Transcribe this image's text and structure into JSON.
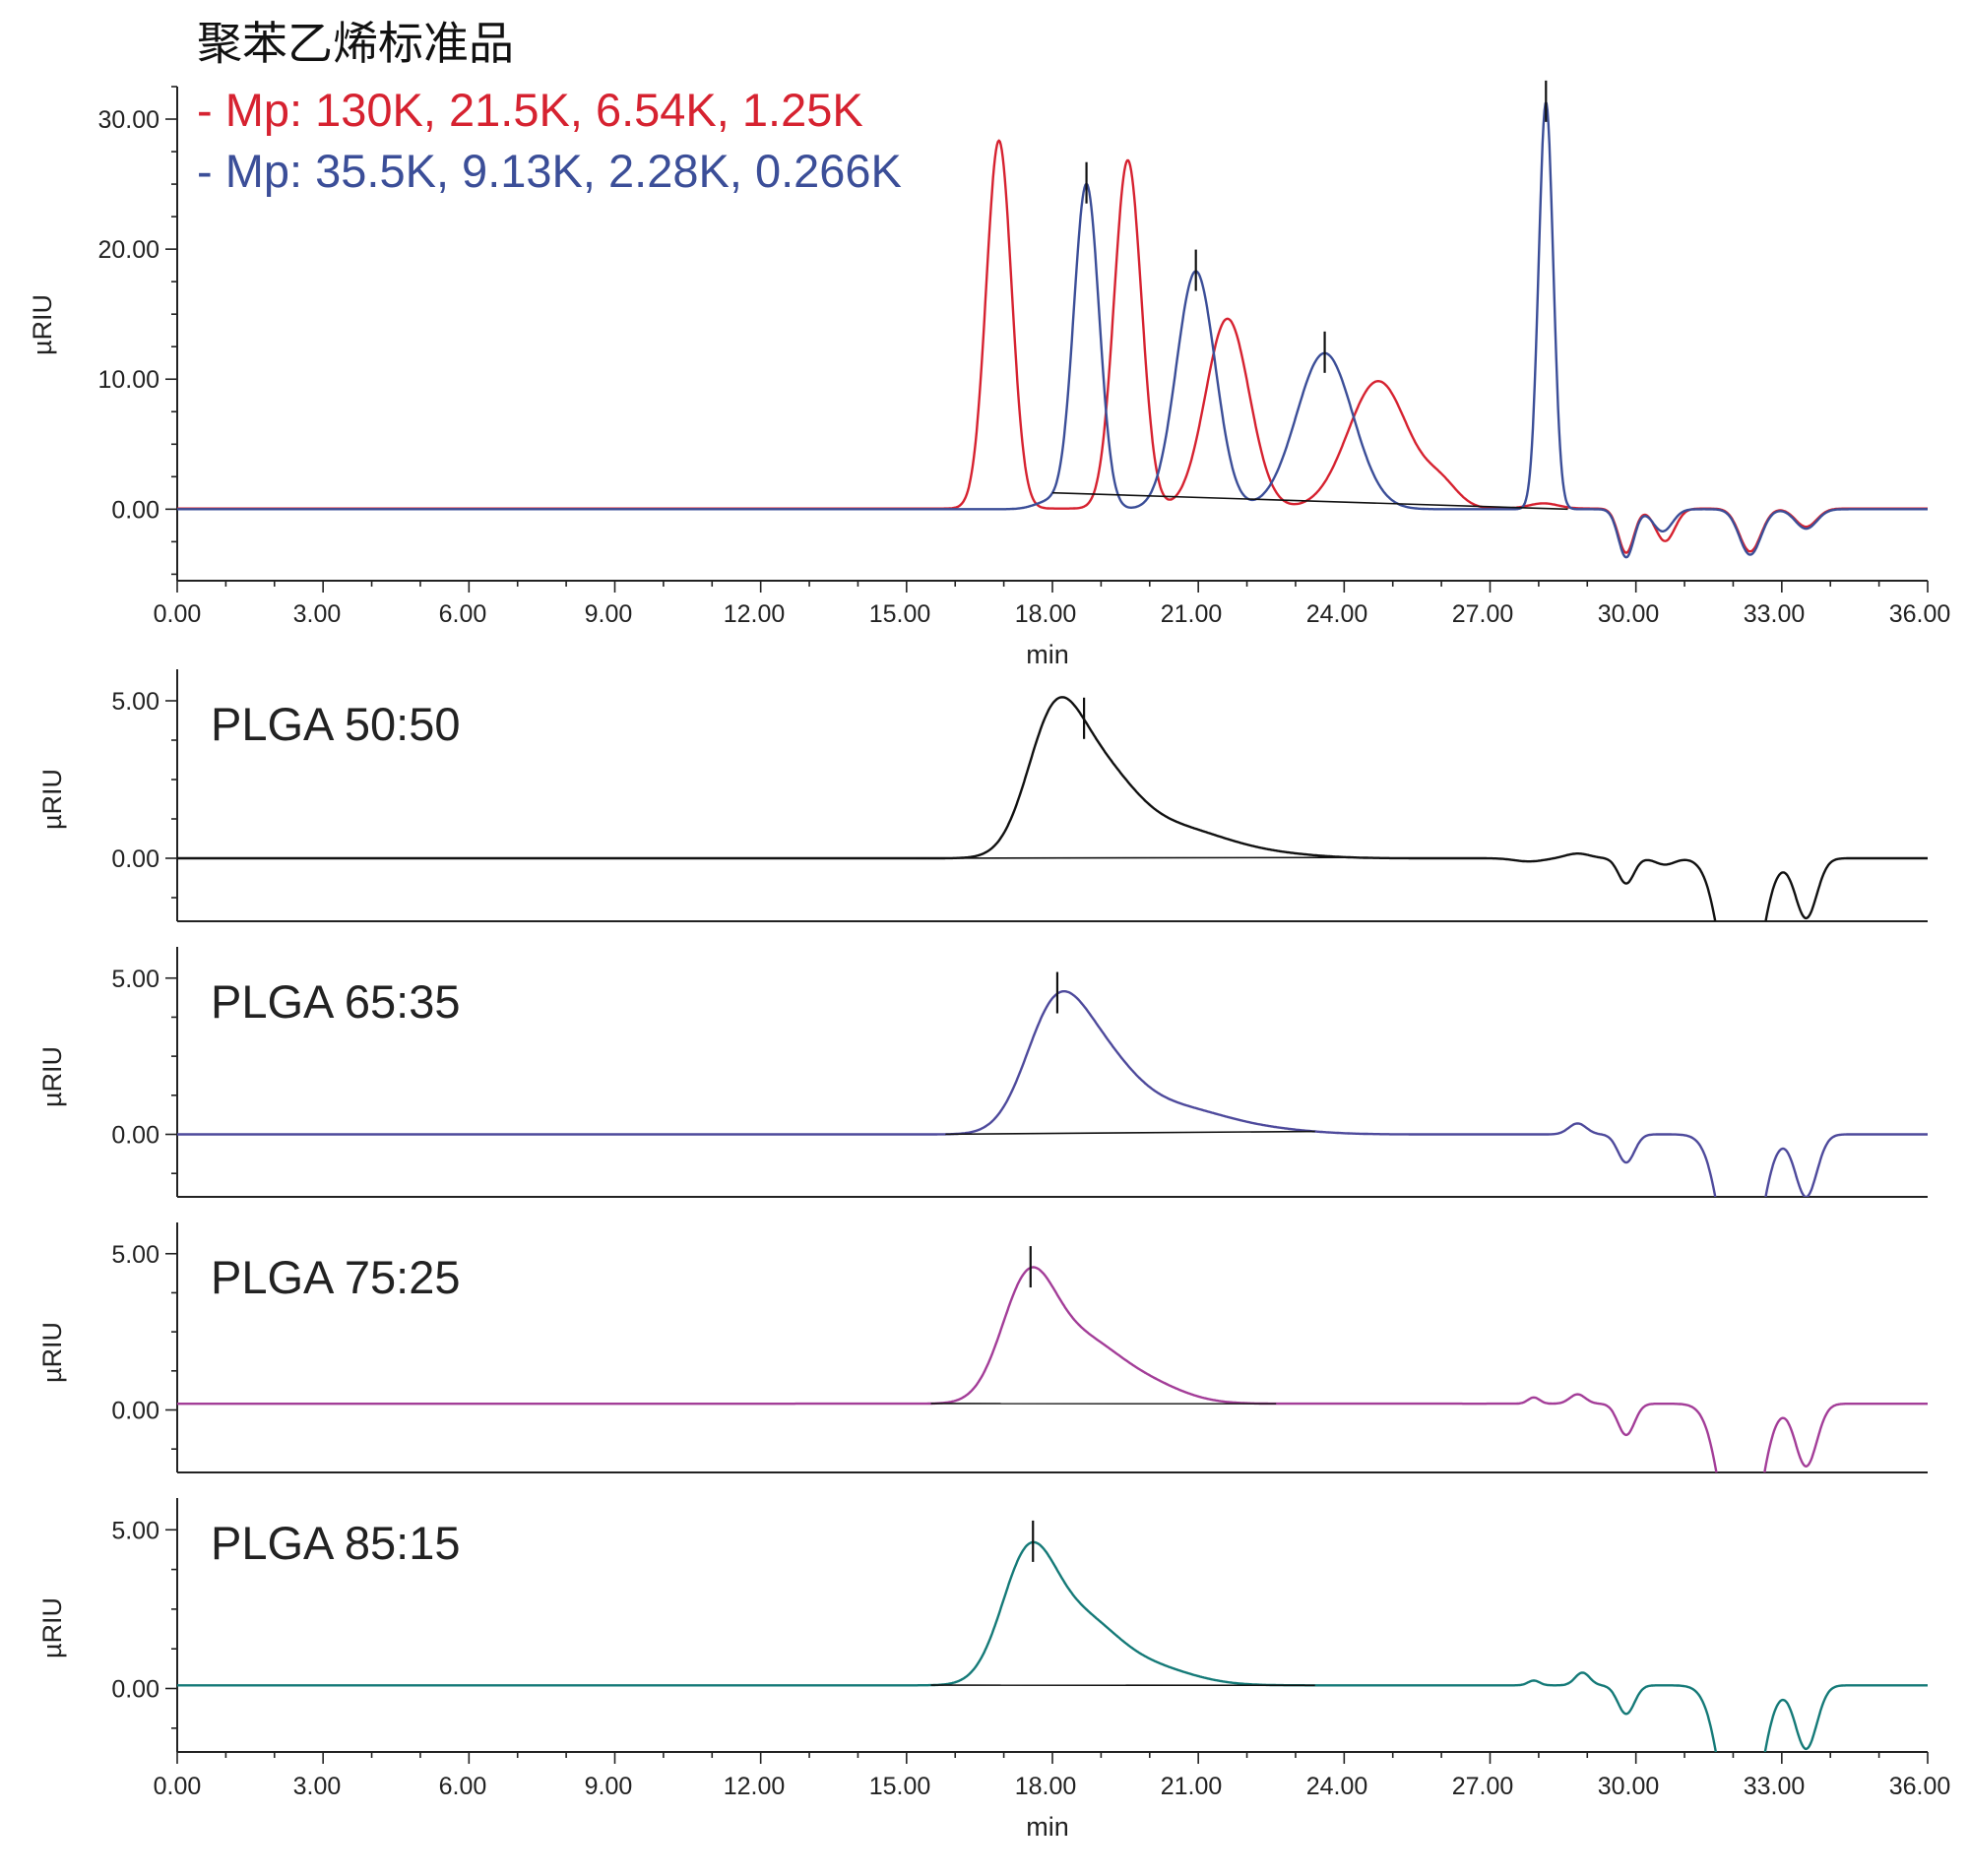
{
  "chart_data": [
    {
      "type": "line",
      "title": "聚苯乙烯标准品",
      "xlabel": "min",
      "ylabel": "µRIU",
      "xlim": [
        0,
        36
      ],
      "ylim": [
        -5.5,
        32.5
      ],
      "x_ticks": [
        "0.00",
        "3.00",
        "6.00",
        "9.00",
        "12.00",
        "15.00",
        "18.00",
        "21.00",
        "24.00",
        "27.00",
        "30.00",
        "33.00",
        "36.00"
      ],
      "y_ticks": [
        {
          "value": 0,
          "label": "0.00"
        },
        {
          "value": 10,
          "label": "10.00"
        },
        {
          "value": 20,
          "label": "20.00"
        },
        {
          "value": 30,
          "label": "30.00"
        }
      ],
      "legend_position": "top-left",
      "series": [
        {
          "name": "- Mp: 130K, 21.5K, 6.54K, 1.25K",
          "color": "#d62230",
          "baseline": 0.05,
          "peaks": [
            {
              "t": 16.9,
              "h": 28.3,
              "w": 0.26
            },
            {
              "t": 19.55,
              "h": 26.8,
              "w": 0.28
            },
            {
              "t": 21.6,
              "h": 14.6,
              "w": 0.45
            },
            {
              "t": 24.7,
              "h": 9.8,
              "w": 0.62
            },
            {
              "t": 26.0,
              "h": 1.6,
              "w": 0.35
            },
            {
              "t": 28.1,
              "h": 0.4,
              "w": 0.3
            },
            {
              "t": 29.8,
              "h": -3.4,
              "w": 0.16
            },
            {
              "t": 30.6,
              "h": -2.5,
              "w": 0.2
            },
            {
              "t": 32.35,
              "h": -3.3,
              "w": 0.22
            },
            {
              "t": 33.5,
              "h": -1.4,
              "w": 0.22
            }
          ]
        },
        {
          "name": "- Mp: 35.5K, 9.13K, 2.28K, 0.266K",
          "color": "#3b4e98",
          "baseline": 0.0,
          "peaks": [
            {
              "t": 17.95,
              "h": 0.6,
              "w": 0.3
            },
            {
              "t": 18.7,
              "h": 25.0,
              "w": 0.26
            },
            {
              "t": 20.95,
              "h": 18.3,
              "w": 0.4
            },
            {
              "t": 23.6,
              "h": 12.0,
              "w": 0.58
            },
            {
              "t": 28.15,
              "h": 31.3,
              "w": 0.15
            },
            {
              "t": 29.8,
              "h": -3.7,
              "w": 0.16
            },
            {
              "t": 30.55,
              "h": -1.7,
              "w": 0.2
            },
            {
              "t": 32.35,
              "h": -3.5,
              "w": 0.22
            },
            {
              "t": 33.5,
              "h": -1.5,
              "w": 0.22
            }
          ]
        }
      ],
      "peak_markers": [
        18.7,
        20.95,
        23.6,
        28.15
      ],
      "integration_baseline": [
        18.0,
        28.6
      ]
    },
    {
      "type": "line",
      "label": "PLGA 50:50",
      "ylabel": "µRIU",
      "xlim": [
        0,
        36
      ],
      "ylim": [
        -2.0,
        6.0
      ],
      "y_ticks": [
        {
          "value": 0,
          "label": "0.00"
        },
        {
          "value": 5,
          "label": "5.00"
        }
      ],
      "color": "#111111",
      "baseline": 0.0,
      "peaks": [
        {
          "t": 18.0,
          "h": 3.6,
          "w": 0.55
        },
        {
          "t": 18.9,
          "h": 2.6,
          "w": 0.75
        },
        {
          "t": 20.5,
          "h": 0.9,
          "w": 1.0
        },
        {
          "t": 22.3,
          "h": 0.15,
          "w": 1.0
        },
        {
          "t": 27.8,
          "h": -0.1,
          "w": 0.3
        },
        {
          "t": 28.8,
          "h": 0.15,
          "w": 0.25
        },
        {
          "t": 29.8,
          "h": -0.8,
          "w": 0.16
        },
        {
          "t": 30.6,
          "h": -0.2,
          "w": 0.2
        },
        {
          "t": 32.15,
          "h": -6.0,
          "w": 0.35
        },
        {
          "t": 33.5,
          "h": -1.9,
          "w": 0.22
        }
      ],
      "peak_marker": 18.65,
      "integration_baseline": [
        15.2,
        24.2
      ]
    },
    {
      "type": "line",
      "label": "PLGA 65:35",
      "ylabel": "µRIU",
      "xlim": [
        0,
        36
      ],
      "ylim": [
        -2.0,
        6.0
      ],
      "y_ticks": [
        {
          "value": 0,
          "label": "0.00"
        },
        {
          "value": 5,
          "label": "5.00"
        }
      ],
      "color": "#4e4a9c",
      "baseline": 0.0,
      "peaks": [
        {
          "t": 18.0,
          "h": 3.2,
          "w": 0.6
        },
        {
          "t": 18.9,
          "h": 2.3,
          "w": 0.75
        },
        {
          "t": 20.5,
          "h": 0.8,
          "w": 1.0
        },
        {
          "t": 22.3,
          "h": 0.15,
          "w": 1.0
        },
        {
          "t": 28.8,
          "h": 0.35,
          "w": 0.18
        },
        {
          "t": 29.8,
          "h": -0.9,
          "w": 0.17
        },
        {
          "t": 32.15,
          "h": -6.0,
          "w": 0.35
        },
        {
          "t": 33.5,
          "h": -2.0,
          "w": 0.22
        }
      ],
      "peak_marker": 18.1,
      "integration_baseline": [
        15.8,
        23.4
      ]
    },
    {
      "type": "line",
      "label": "PLGA 75:25",
      "ylabel": "µRIU",
      "xlim": [
        0,
        36
      ],
      "ylim": [
        -2.0,
        6.0
      ],
      "y_ticks": [
        {
          "value": 0,
          "label": "0.00"
        },
        {
          "value": 5,
          "label": "5.00"
        }
      ],
      "color": "#a33d98",
      "baseline": 0.2,
      "peaks": [
        {
          "t": 17.5,
          "h": 3.8,
          "w": 0.55
        },
        {
          "t": 18.6,
          "h": 1.7,
          "w": 0.7
        },
        {
          "t": 19.8,
          "h": 0.7,
          "w": 0.8
        },
        {
          "t": 27.9,
          "h": 0.2,
          "w": 0.12
        },
        {
          "t": 28.8,
          "h": 0.3,
          "w": 0.16
        },
        {
          "t": 29.8,
          "h": -1.0,
          "w": 0.17
        },
        {
          "t": 32.15,
          "h": -6.0,
          "w": 0.35
        },
        {
          "t": 33.5,
          "h": -2.0,
          "w": 0.22
        }
      ],
      "peak_marker": 17.55,
      "integration_baseline": [
        15.5,
        22.6
      ]
    },
    {
      "type": "line",
      "label": "PLGA 85:15",
      "ylabel": "µRIU",
      "xlabel": "min",
      "xlim": [
        0,
        36
      ],
      "ylim": [
        -2.0,
        6.0
      ],
      "x_ticks": [
        "0.00",
        "3.00",
        "6.00",
        "9.00",
        "12.00",
        "15.00",
        "18.00",
        "21.00",
        "24.00",
        "27.00",
        "30.00",
        "33.00",
        "36.00"
      ],
      "y_ticks": [
        {
          "value": 0,
          "label": "0.00"
        },
        {
          "value": 5,
          "label": "5.00"
        }
      ],
      "color": "#157a78",
      "baseline": 0.1,
      "peaks": [
        {
          "t": 17.5,
          "h": 3.9,
          "w": 0.55
        },
        {
          "t": 18.6,
          "h": 1.8,
          "w": 0.7
        },
        {
          "t": 19.9,
          "h": 0.6,
          "w": 0.9
        },
        {
          "t": 27.9,
          "h": 0.15,
          "w": 0.12
        },
        {
          "t": 28.9,
          "h": 0.4,
          "w": 0.15
        },
        {
          "t": 29.8,
          "h": -0.9,
          "w": 0.17
        },
        {
          "t": 32.15,
          "h": -6.0,
          "w": 0.35
        },
        {
          "t": 33.5,
          "h": -2.0,
          "w": 0.22
        }
      ],
      "peak_marker": 17.6,
      "integration_baseline": [
        15.5,
        23.4
      ]
    }
  ]
}
